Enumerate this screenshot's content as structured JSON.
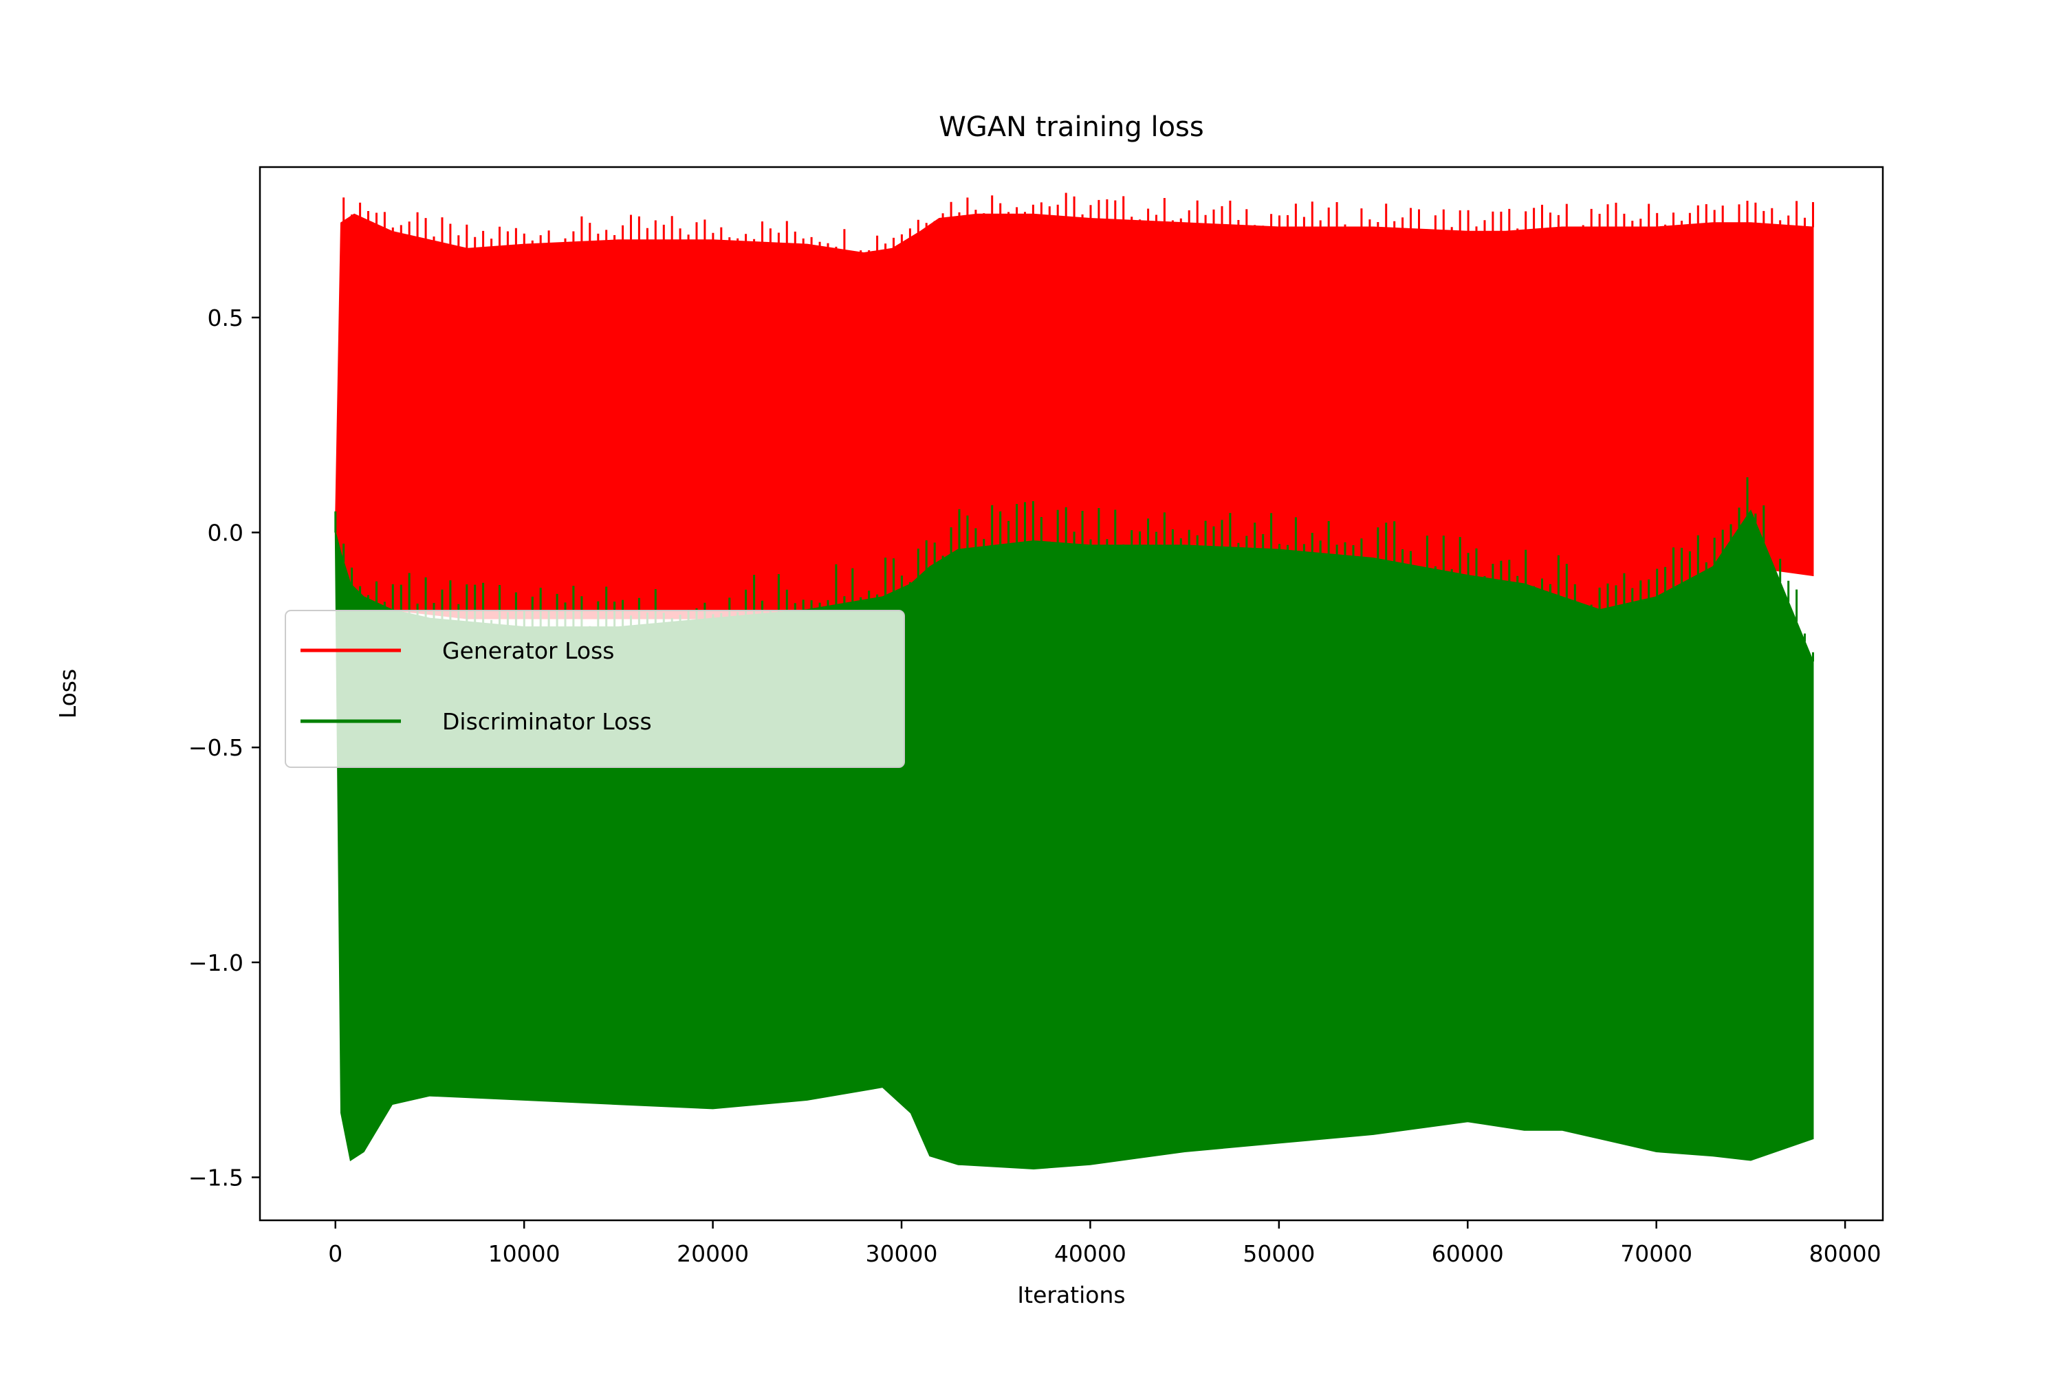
{
  "chart_data": {
    "type": "line",
    "title": "WGAN training loss",
    "xlabel": "Iterations",
    "ylabel": "Loss",
    "xlim": [
      -4000,
      82000
    ],
    "ylim": [
      -1.6,
      0.85
    ],
    "xticks": [
      0,
      10000,
      20000,
      30000,
      40000,
      50000,
      60000,
      70000,
      80000
    ],
    "xtick_labels": [
      "0",
      "10000",
      "20000",
      "30000",
      "40000",
      "50000",
      "60000",
      "70000",
      "80000"
    ],
    "yticks": [
      -1.5,
      -1.0,
      -0.5,
      0.0,
      0.5
    ],
    "ytick_labels": [
      "−1.5",
      "−1.0",
      "−0.5",
      "0.0",
      "0.5"
    ],
    "grid": false,
    "legend_position": "center-left",
    "series": [
      {
        "name": "Generator Loss",
        "color": "#ff0000",
        "x": [
          0,
          300,
          1000,
          3000,
          7000,
          10000,
          15000,
          20000,
          25000,
          28000,
          29500,
          31000,
          32000,
          34000,
          37000,
          40000,
          45000,
          50000,
          55000,
          60000,
          62000,
          65000,
          67000,
          70000,
          73000,
          75000,
          78300
        ],
        "upper": [
          0.0,
          0.72,
          0.74,
          0.7,
          0.66,
          0.67,
          0.68,
          0.68,
          0.67,
          0.65,
          0.66,
          0.7,
          0.73,
          0.74,
          0.74,
          0.73,
          0.72,
          0.71,
          0.71,
          0.7,
          0.7,
          0.71,
          0.71,
          0.71,
          0.72,
          0.72,
          0.71
        ],
        "lower": [
          0.0,
          -0.1,
          -0.15,
          -0.18,
          -0.2,
          -0.2,
          -0.2,
          -0.2,
          -0.2,
          -0.2,
          -0.15,
          -0.15,
          -0.08,
          -0.05,
          -0.03,
          -0.04,
          -0.06,
          -0.08,
          -0.1,
          -0.15,
          -0.18,
          -0.22,
          -0.26,
          -0.18,
          -0.1,
          -0.08,
          -0.1
        ]
      },
      {
        "name": "Discriminator Loss",
        "color": "#008000",
        "x": [
          0,
          300,
          800,
          1500,
          3000,
          5000,
          10000,
          15000,
          20000,
          25000,
          29000,
          30500,
          31500,
          33000,
          37000,
          40000,
          45000,
          50000,
          55000,
          60000,
          63000,
          65000,
          67000,
          70000,
          73000,
          75000,
          78300
        ],
        "upper": [
          0.0,
          -0.05,
          -0.12,
          -0.15,
          -0.18,
          -0.2,
          -0.22,
          -0.22,
          -0.2,
          -0.18,
          -0.15,
          -0.12,
          -0.08,
          -0.04,
          -0.02,
          -0.03,
          -0.03,
          -0.04,
          -0.06,
          -0.1,
          -0.12,
          -0.15,
          -0.18,
          -0.15,
          -0.08,
          0.05,
          -0.3
        ],
        "lower": [
          0.0,
          -1.35,
          -1.46,
          -1.44,
          -1.33,
          -1.31,
          -1.32,
          -1.33,
          -1.34,
          -1.32,
          -1.29,
          -1.35,
          -1.45,
          -1.47,
          -1.48,
          -1.47,
          -1.44,
          -1.42,
          -1.4,
          -1.37,
          -1.39,
          -1.39,
          -1.41,
          -1.44,
          -1.45,
          -1.46,
          -1.41
        ]
      }
    ]
  }
}
